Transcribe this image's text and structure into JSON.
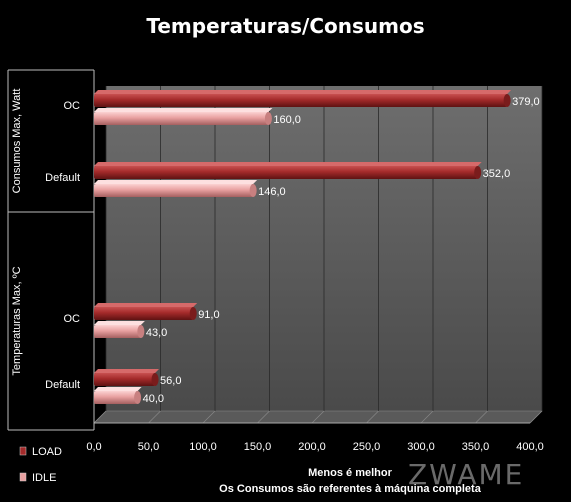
{
  "chart_data": {
    "type": "bar",
    "orientation": "horizontal",
    "title": "Temperaturas/Consumos",
    "groups": [
      {
        "label": "Consumos Max, Watt",
        "categories": [
          {
            "name": "OC",
            "load": 379.0,
            "idle": 160.0
          },
          {
            "name": "Default",
            "load": 352.0,
            "idle": 146.0
          }
        ]
      },
      {
        "label": "Temperaturas Max, ºC",
        "categories": [
          {
            "name": "OC",
            "load": 91.0,
            "idle": 43.0
          },
          {
            "name": "Default",
            "load": 56.0,
            "idle": 40.0
          }
        ]
      }
    ],
    "series": [
      {
        "name": "LOAD",
        "key": "load",
        "color": "#a32a2a"
      },
      {
        "name": "IDLE",
        "key": "idle",
        "color": "#e8a0a0"
      }
    ],
    "xlim": [
      0,
      400
    ],
    "xticks": [
      0,
      50,
      100,
      150,
      200,
      250,
      300,
      350,
      400
    ],
    "tick_labels": [
      "0,0",
      "50,0",
      "100,0",
      "150,0",
      "200,0",
      "250,0",
      "300,0",
      "350,0",
      "400,0"
    ],
    "grid": true,
    "legend_position": "bottom-left",
    "xlabel": "Menos é melhor",
    "note": "Os Consumos  são referentes à máquina  completa"
  },
  "watermark": "ZWAME"
}
